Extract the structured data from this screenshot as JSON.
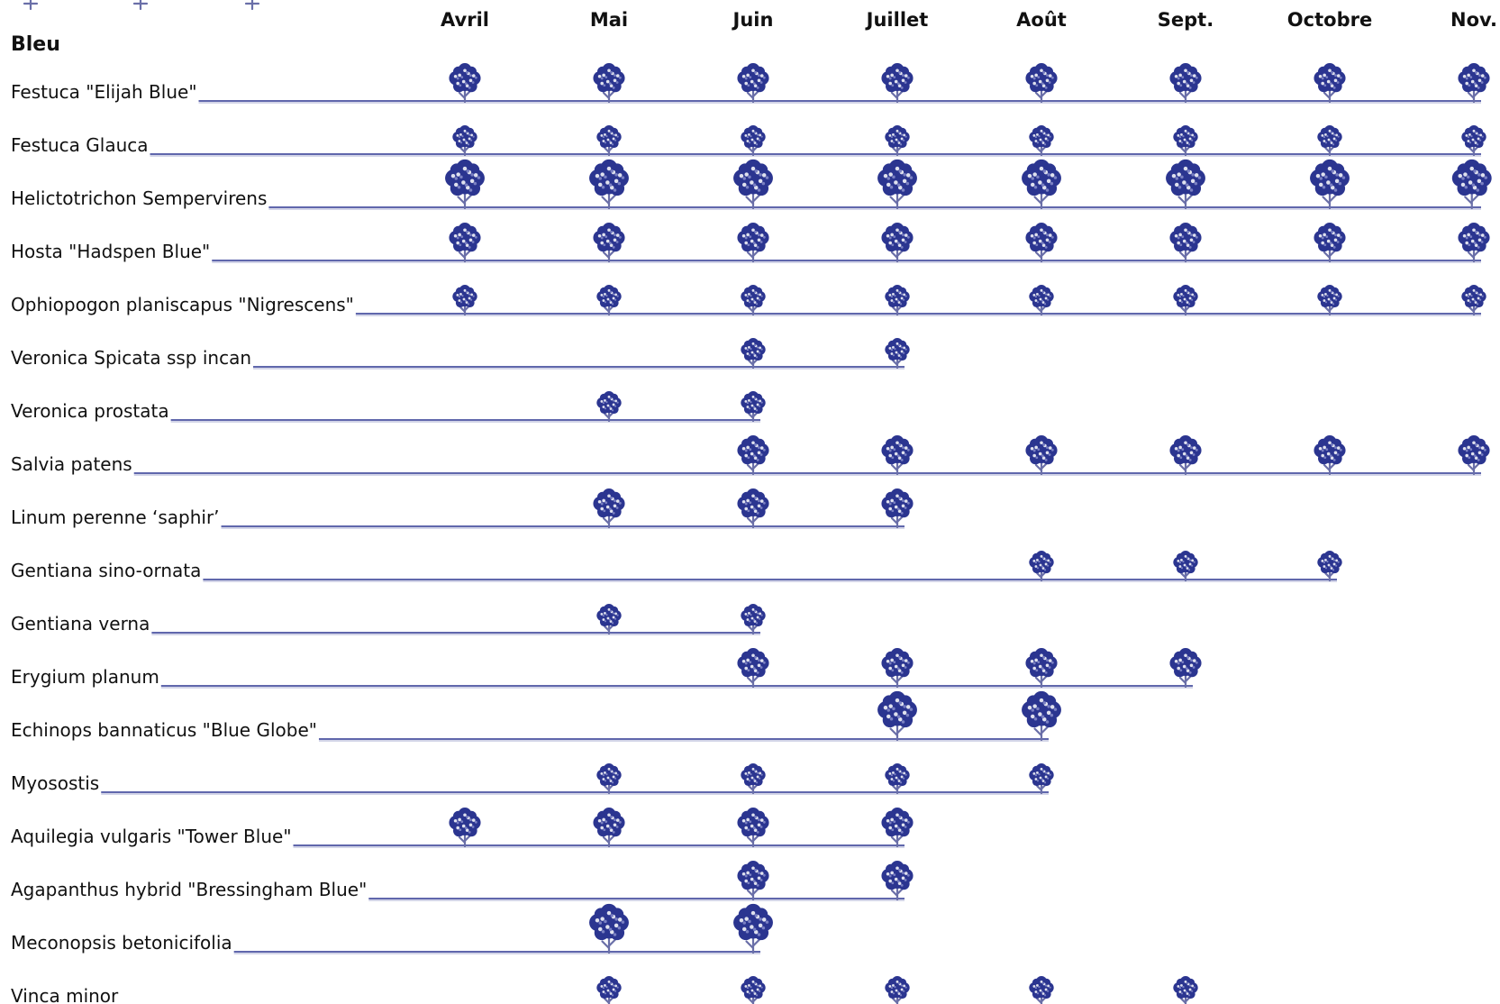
{
  "chart_data": {
    "type": "table",
    "section": "Bleu",
    "months": [
      "Avril",
      "Mai",
      "Juin",
      "Juillet",
      "Août",
      "Sept.",
      "Octobre",
      "Nov."
    ],
    "colors": {
      "foliage": "#2b3590",
      "foliage_light": "#7a80c2",
      "line": "#2b3590"
    },
    "rows": [
      {
        "name": "Festuca \"Elijah Blue\"",
        "months": [
          "Avril",
          "Mai",
          "Juin",
          "Juillet",
          "Août",
          "Sept.",
          "Octobre",
          "Nov."
        ],
        "size": "medium"
      },
      {
        "name": "Festuca Glauca",
        "months": [
          "Avril",
          "Mai",
          "Juin",
          "Juillet",
          "Août",
          "Sept.",
          "Octobre",
          "Nov."
        ],
        "size": "small"
      },
      {
        "name": "Helictotrichon Sempervirens",
        "months": [
          "Avril",
          "Mai",
          "Juin",
          "Juillet",
          "Août",
          "Sept.",
          "Octobre",
          "Nov."
        ],
        "size": "large"
      },
      {
        "name": "Hosta \"Hadspen Blue\"",
        "months": [
          "Avril",
          "Mai",
          "Juin",
          "Juillet",
          "Août",
          "Sept.",
          "Octobre",
          "Nov."
        ],
        "size": "medium"
      },
      {
        "name": "Ophiopogon planiscapus \"Nigrescens\"",
        "months": [
          "Avril",
          "Mai",
          "Juin",
          "Juillet",
          "Août",
          "Sept.",
          "Octobre",
          "Nov."
        ],
        "size": "small"
      },
      {
        "name": "Veronica Spicata ssp incan",
        "months": [
          "Juin",
          "Juillet"
        ],
        "size": "small"
      },
      {
        "name": "Veronica prostata",
        "months": [
          "Mai",
          "Juin"
        ],
        "size": "small"
      },
      {
        "name": "Salvia patens",
        "months": [
          "Juin",
          "Juillet",
          "Août",
          "Sept.",
          "Octobre",
          "Nov."
        ],
        "size": "medium"
      },
      {
        "name": "Linum perenne ‘saphir’",
        "months": [
          "Mai",
          "Juin",
          "Juillet"
        ],
        "size": "medium"
      },
      {
        "name": "Gentiana sino-ornata",
        "months": [
          "Août",
          "Sept.",
          "Octobre"
        ],
        "size": "small"
      },
      {
        "name": "Gentiana verna",
        "months": [
          "Mai",
          "Juin"
        ],
        "size": "small"
      },
      {
        "name": "Erygium planum",
        "months": [
          "Juin",
          "Juillet",
          "Août",
          "Sept."
        ],
        "size": "medium"
      },
      {
        "name": "Echinops bannaticus \"Blue Globe\"",
        "months": [
          "Juillet",
          "Août"
        ],
        "size": "large"
      },
      {
        "name": "Myosostis",
        "months": [
          "Mai",
          "Juin",
          "Juillet",
          "Août"
        ],
        "size": "small"
      },
      {
        "name": "Aquilegia vulgaris \"Tower Blue\"",
        "months": [
          "Avril",
          "Mai",
          "Juin",
          "Juillet"
        ],
        "size": "medium"
      },
      {
        "name": "Agapanthus hybrid \"Bressingham Blue\"",
        "months": [
          "Juin",
          "Juillet"
        ],
        "size": "medium"
      },
      {
        "name": "Meconopsis betonicifolia",
        "months": [
          "Mai",
          "Juin"
        ],
        "size": "large"
      },
      {
        "name": "Vinca minor",
        "months": [
          "Mai",
          "Juin",
          "Juillet",
          "Août",
          "Sept."
        ],
        "size": "small"
      }
    ]
  }
}
